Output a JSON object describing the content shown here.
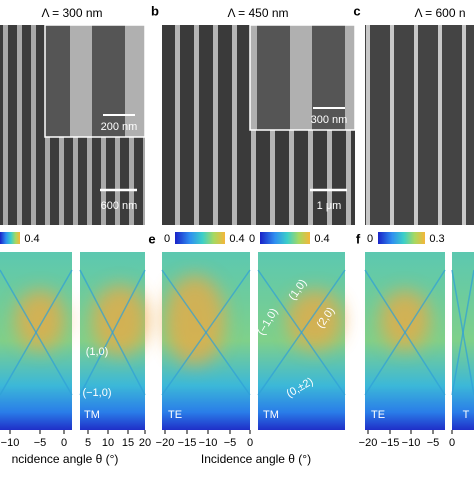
{
  "panels": [
    {
      "title": "Λ = 300 nm",
      "inset_scale": "200 nm",
      "scale": "600 nm"
    },
    {
      "letter": "b",
      "title": "Λ = 450 nm",
      "inset_scale": "300 nm",
      "scale": "1 μm"
    },
    {
      "letter": "c",
      "title": "Λ = 600 n"
    }
  ],
  "maps": [
    {
      "colorbar_max": "0.4",
      "labels": [
        "TM",
        "(1,0)",
        "(−1,0)"
      ],
      "ticks": [
        "−10",
        "−5",
        "0",
        "5",
        "10",
        "15",
        "20"
      ],
      "x_label": "ncidence angle θ (°)"
    },
    {
      "letter": "e",
      "colorbars": [
        {
          "min": "0",
          "max": "0.4"
        },
        {
          "min": "0",
          "max": "0.4"
        }
      ],
      "labels": [
        "TE",
        "TM",
        "(1,0)",
        "(−1,0)",
        "(2,0)",
        "(0,±2)"
      ],
      "ticks": [
        "−20",
        "−15",
        "−10",
        "−5",
        "0"
      ],
      "x_label": "Incidence angle θ (°)"
    },
    {
      "letter": "f",
      "colorbar": {
        "min": "0",
        "max": "0.3"
      },
      "labels": [
        "TE",
        "T"
      ],
      "ticks": [
        "−20",
        "−15",
        "−10",
        "−5",
        "0"
      ]
    }
  ]
}
